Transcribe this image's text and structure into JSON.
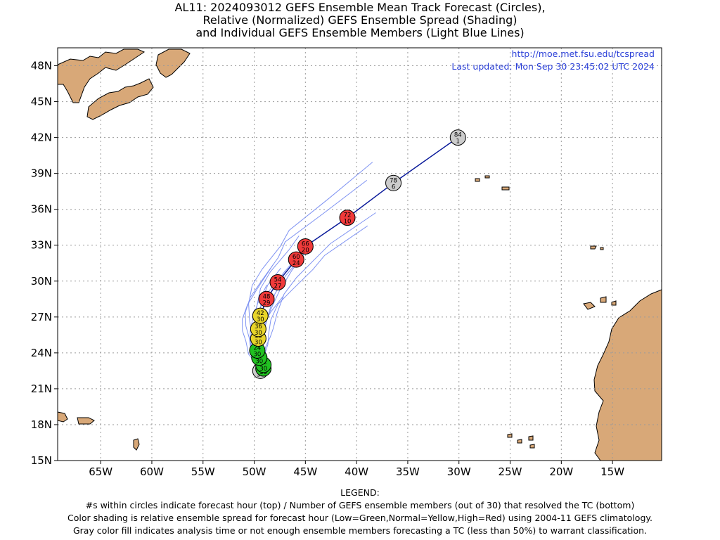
{
  "title": {
    "line1": "AL11: 2024093012 GEFS Ensemble Mean Track Forecast (Circles),",
    "line2": "Relative (Normalized) GEFS Ensemble Spread (Shading)",
    "line3": "and Individual GEFS Ensemble Members (Light Blue Lines)"
  },
  "header_info": {
    "url": "http://moe.met.fsu.edu/tcspread",
    "last_updated": "Last updated: Mon Sep 30 23:45:02 UTC 2024"
  },
  "axes": {
    "lon_labels": [
      "65W",
      "60W",
      "55W",
      "50W",
      "45W",
      "40W",
      "35W",
      "30W",
      "25W",
      "20W",
      "15W"
    ],
    "lon_values": [
      -65,
      -60,
      -55,
      -50,
      -45,
      -40,
      -35,
      -30,
      -25,
      -20,
      -15
    ],
    "lat_labels": [
      "48N",
      "45N",
      "42N",
      "39N",
      "36N",
      "33N",
      "30N",
      "27N",
      "24N",
      "21N",
      "18N",
      "15N"
    ],
    "lat_values": [
      48,
      45,
      42,
      39,
      36,
      33,
      30,
      27,
      24,
      21,
      18,
      15
    ],
    "lon_range": [
      -69.2,
      -10.2
    ],
    "lat_range": [
      15,
      49.5
    ],
    "grid": "dotted"
  },
  "colors": {
    "land": "#d8a878",
    "ocean": "#ffffff",
    "member_line": "#7f93f2",
    "mean_line": "#0a1a9a",
    "low_spread": "#21c121",
    "normal_spread": "#e8d52a",
    "high_spread": "#f03a3a",
    "analysis_gray": "#cccccc",
    "grid": "#9a9a9a"
  },
  "forecast_points": [
    {
      "hour": "0",
      "members": "30",
      "lon": -49.4,
      "lat": 22.5,
      "category": "gray"
    },
    {
      "hour": "6",
      "members": "30",
      "lon": -49.1,
      "lat": 22.7,
      "category": "low"
    },
    {
      "hour": "12",
      "members": "30",
      "lon": -49.1,
      "lat": 23.0,
      "category": "low"
    },
    {
      "hour": "18",
      "members": "30",
      "lon": -49.5,
      "lat": 23.6,
      "category": "low"
    },
    {
      "hour": "24",
      "members": "30",
      "lon": -49.7,
      "lat": 24.2,
      "category": "low"
    },
    {
      "hour": "30",
      "members": "30",
      "lon": -49.6,
      "lat": 25.2,
      "category": "normal"
    },
    {
      "hour": "36",
      "members": "30",
      "lon": -49.6,
      "lat": 26.0,
      "category": "normal"
    },
    {
      "hour": "42",
      "members": "30",
      "lon": -49.4,
      "lat": 27.1,
      "category": "normal"
    },
    {
      "hour": "48",
      "members": "29",
      "lon": -48.8,
      "lat": 28.5,
      "category": "high"
    },
    {
      "hour": "54",
      "members": "27",
      "lon": -47.7,
      "lat": 29.9,
      "category": "high"
    },
    {
      "hour": "60",
      "members": "24",
      "lon": -45.9,
      "lat": 31.8,
      "category": "high"
    },
    {
      "hour": "66",
      "members": "20",
      "lon": -45.0,
      "lat": 32.9,
      "category": "high"
    },
    {
      "hour": "72",
      "members": "10",
      "lon": -40.9,
      "lat": 35.3,
      "category": "high"
    },
    {
      "hour": "78",
      "members": "6",
      "lon": -36.4,
      "lat": 38.2,
      "category": "gray"
    },
    {
      "hour": "84",
      "members": "1",
      "lon": -30.1,
      "lat": 42.0,
      "category": "gray"
    }
  ],
  "legend": {
    "heading": "LEGEND:",
    "line1": "#s within circles indicate forecast hour (top) / Number of GEFS ensemble members (out of 30) that resolved the TC (bottom)",
    "line2": "Color shading is relative ensemble spread for forecast hour (Low=Green,Normal=Yellow,High=Red) using 2004-11 GEFS climatology.",
    "line3": "Gray color fill indicates analysis time or not enough ensemble members forecasting a TC (less than 50%) to warrant classification."
  }
}
